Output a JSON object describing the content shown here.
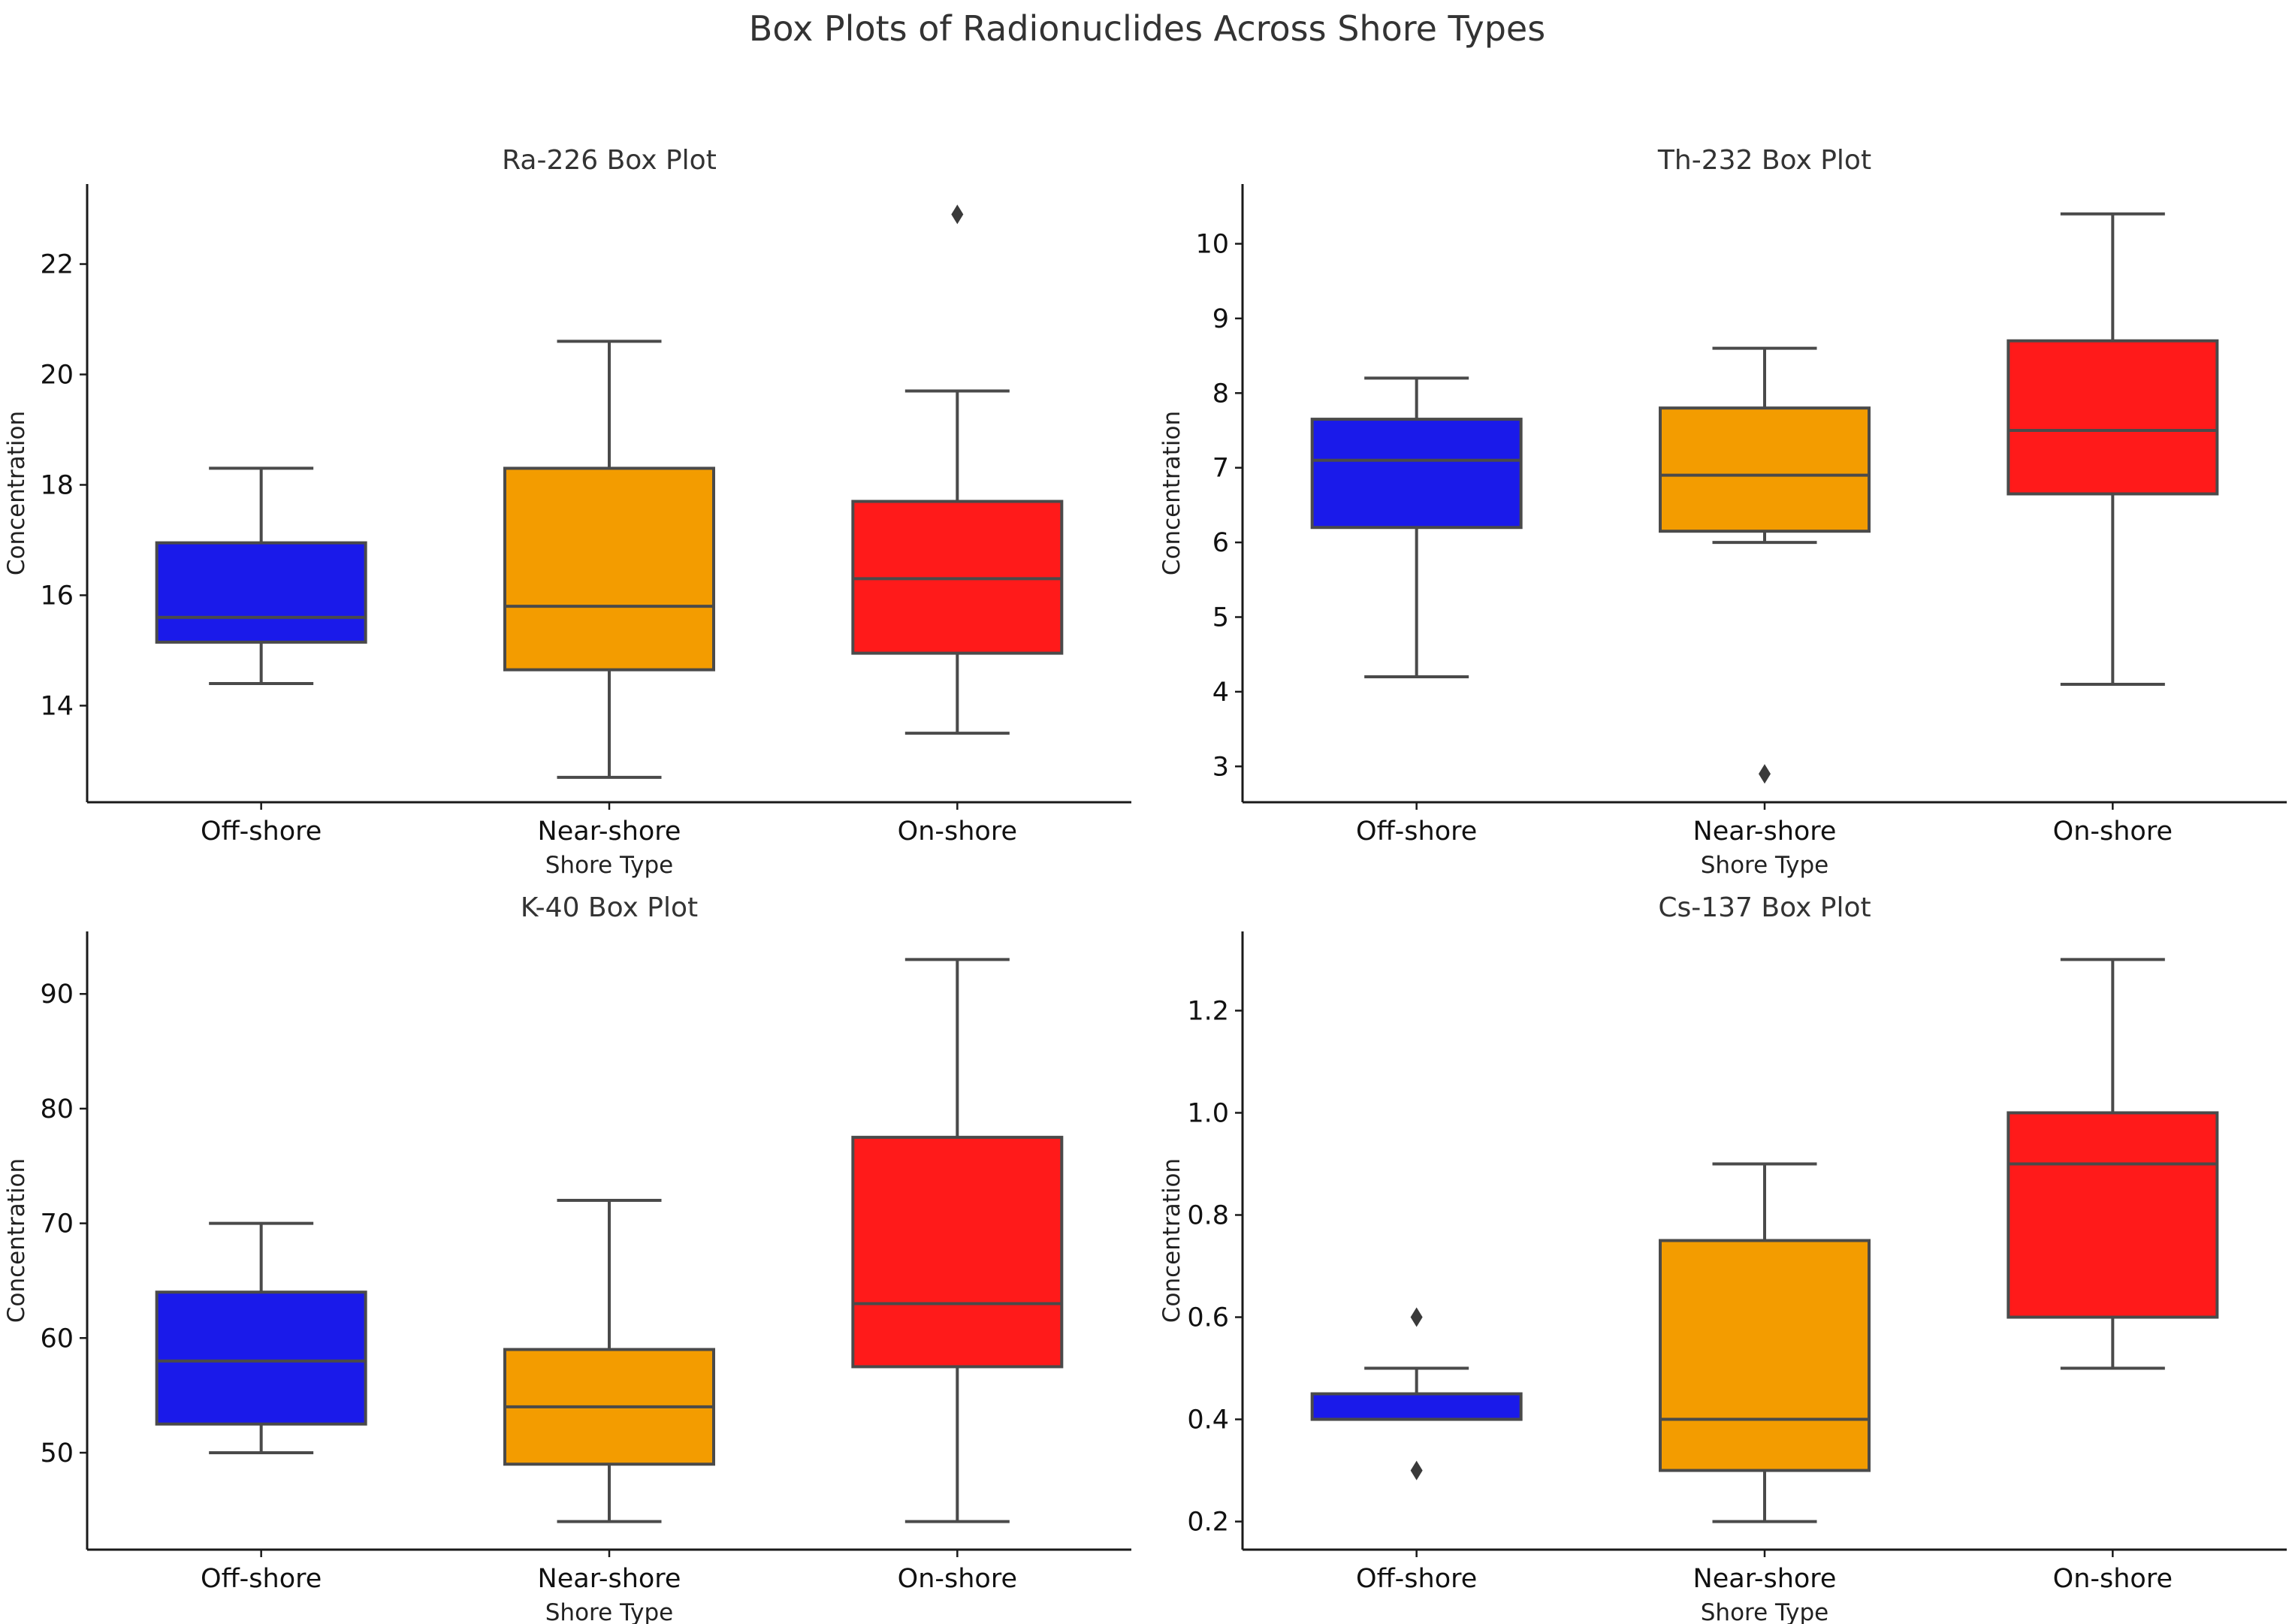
{
  "figure": {
    "title": "Box Plots of Radionuclides Across Shore Types"
  },
  "chart_data": [
    {
      "type": "box",
      "title": "Ra-226 Box Plot",
      "xlabel": "Shore Type",
      "ylabel": "Concentration",
      "ylim": [
        12.25,
        23.45
      ],
      "yticks": [
        14,
        16,
        18,
        20,
        22
      ],
      "categories": [
        "Off-shore",
        "Near-shore",
        "On-shore"
      ],
      "colors": [
        "#1a1aea",
        "#f39c00",
        "#ff1a1a"
      ],
      "boxes": [
        {
          "whisker_low": 14.4,
          "q1": 15.15,
          "median": 15.6,
          "q3": 16.95,
          "whisker_high": 18.3,
          "outliers": []
        },
        {
          "whisker_low": 12.7,
          "q1": 14.65,
          "median": 15.8,
          "q3": 18.3,
          "whisker_high": 20.6,
          "outliers": []
        },
        {
          "whisker_low": 13.5,
          "q1": 14.95,
          "median": 16.3,
          "q3": 17.7,
          "whisker_high": 19.7,
          "outliers": [
            22.9
          ]
        }
      ]
    },
    {
      "type": "box",
      "title": "Th-232 Box Plot",
      "xlabel": "Shore Type",
      "ylabel": "Concentration",
      "ylim": [
        2.52,
        10.8
      ],
      "yticks": [
        3,
        4,
        5,
        6,
        7,
        8,
        9,
        10
      ],
      "categories": [
        "Off-shore",
        "Near-shore",
        "On-shore"
      ],
      "colors": [
        "#1a1aea",
        "#f39c00",
        "#ff1a1a"
      ],
      "boxes": [
        {
          "whisker_low": 4.2,
          "q1": 6.2,
          "median": 7.1,
          "q3": 7.65,
          "whisker_high": 8.2,
          "outliers": []
        },
        {
          "whisker_low": 6.0,
          "q1": 6.15,
          "median": 6.9,
          "q3": 7.8,
          "whisker_high": 8.6,
          "outliers": [
            2.9
          ]
        },
        {
          "whisker_low": 4.1,
          "q1": 6.65,
          "median": 7.5,
          "q3": 8.7,
          "whisker_high": 10.4,
          "outliers": []
        }
      ]
    },
    {
      "type": "box",
      "title": "K-40 Box Plot",
      "xlabel": "Shore Type",
      "ylabel": "Concentration",
      "ylim": [
        41.55,
        95.45
      ],
      "yticks": [
        50,
        60,
        70,
        80,
        90
      ],
      "categories": [
        "Off-shore",
        "Near-shore",
        "On-shore"
      ],
      "colors": [
        "#1a1aea",
        "#f39c00",
        "#ff1a1a"
      ],
      "boxes": [
        {
          "whisker_low": 50,
          "q1": 52.5,
          "median": 58,
          "q3": 64,
          "whisker_high": 70,
          "outliers": []
        },
        {
          "whisker_low": 44,
          "q1": 49,
          "median": 54,
          "q3": 59,
          "whisker_high": 72,
          "outliers": []
        },
        {
          "whisker_low": 44,
          "q1": 57.5,
          "median": 63,
          "q3": 77.5,
          "whisker_high": 93,
          "outliers": []
        }
      ]
    },
    {
      "type": "box",
      "title": "Cs-137 Box Plot",
      "xlabel": "Shore Type",
      "ylabel": "Concentration",
      "ylim": [
        0.145,
        1.355
      ],
      "yticks": [
        0.2,
        0.4,
        0.6,
        0.8,
        1.0,
        1.2
      ],
      "ytick_labels": [
        "0.2",
        "0.4",
        "0.6",
        "0.8",
        "1.0",
        "1.2"
      ],
      "categories": [
        "Off-shore",
        "Near-shore",
        "On-shore"
      ],
      "colors": [
        "#1a1aea",
        "#f39c00",
        "#ff1a1a"
      ],
      "boxes": [
        {
          "whisker_low": 0.4,
          "q1": 0.4,
          "median": 0.4,
          "q3": 0.45,
          "whisker_high": 0.5,
          "outliers": [
            0.3,
            0.6
          ]
        },
        {
          "whisker_low": 0.2,
          "q1": 0.3,
          "median": 0.4,
          "q3": 0.75,
          "whisker_high": 0.9,
          "outliers": []
        },
        {
          "whisker_low": 0.5,
          "q1": 0.6,
          "median": 0.9,
          "q3": 1.0,
          "whisker_high": 1.3,
          "outliers": []
        }
      ]
    }
  ]
}
